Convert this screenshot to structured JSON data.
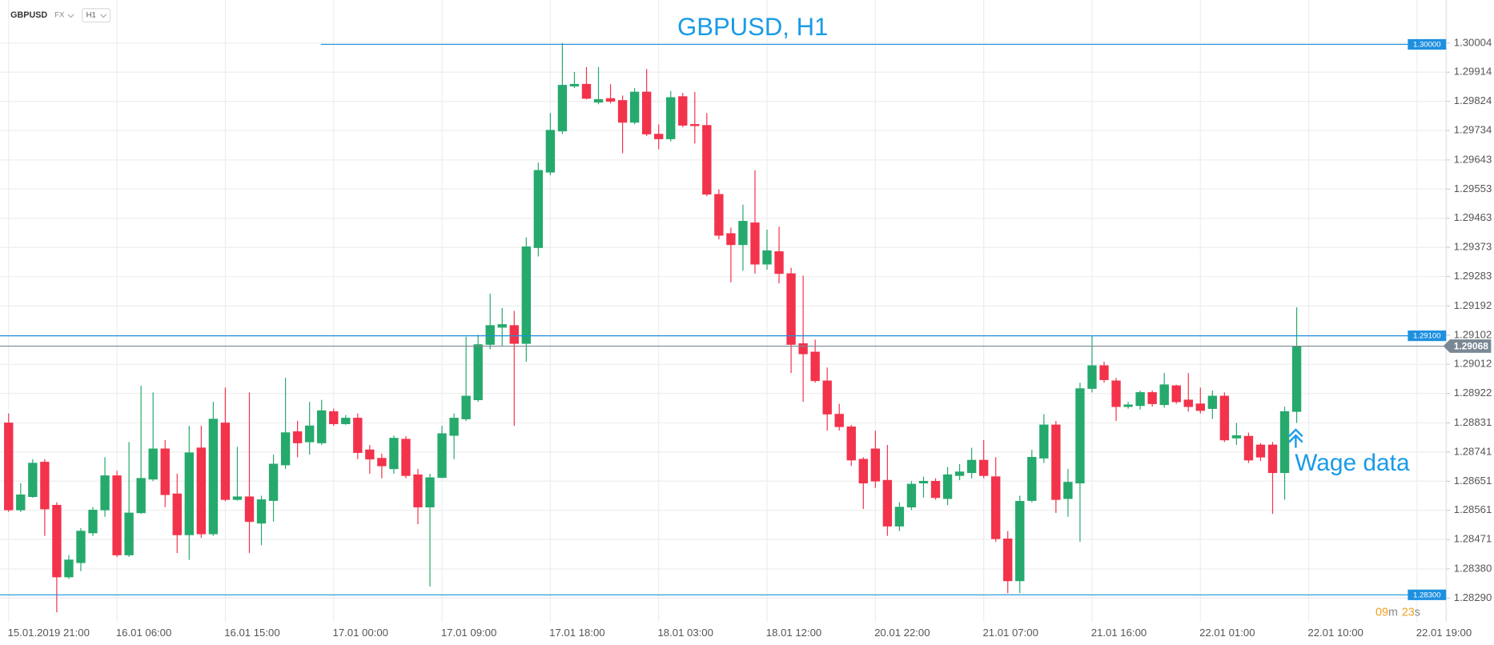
{
  "toolbar": {
    "symbol": "GBPUSD",
    "market": "FX",
    "timeframe": "H1"
  },
  "chart_data": {
    "type": "candlestick",
    "title": "GBPUSD, H1",
    "categories": [
      "15.01.2019 21:00",
      null,
      null,
      null,
      null,
      null,
      null,
      null,
      null,
      "16.01 06:00",
      null,
      null,
      null,
      null,
      null,
      null,
      null,
      null,
      "16.01 15:00",
      null,
      null,
      null,
      null,
      null,
      null,
      null,
      null,
      "17.01 00:00",
      null,
      null,
      null,
      null,
      null,
      null,
      null,
      null,
      "17.01 09:00",
      null,
      null,
      null,
      null,
      null,
      null,
      null,
      null,
      "17.01 18:00",
      null,
      null,
      null,
      null,
      null,
      null,
      null,
      null,
      "18.01 03:00",
      null,
      null,
      null,
      null,
      null,
      null,
      null,
      null,
      "18.01 12:00",
      null,
      null,
      null,
      null,
      null,
      null,
      null,
      null,
      "20.01 22:00",
      null,
      null,
      null,
      null,
      null,
      null,
      null,
      null,
      "21.01 07:00",
      null,
      null,
      null,
      null,
      null,
      null,
      null,
      null,
      "21.01 16:00",
      null,
      null,
      null,
      null,
      null,
      null,
      null,
      null,
      "22.01 01:00",
      null,
      null,
      null,
      null,
      null,
      null,
      null,
      null,
      "22.01 10:00",
      null,
      null,
      null,
      null,
      null,
      null,
      null,
      null,
      "22.01 19:00"
    ],
    "open": [
      1.28831,
      1.28562,
      1.28603,
      1.2871,
      1.28577,
      1.28355,
      1.28399,
      1.28491,
      1.28562,
      1.28668,
      1.28423,
      1.28553,
      1.28657,
      1.28751,
      1.28612,
      1.28485,
      1.28754,
      1.28488,
      1.28831,
      1.28594,
      1.28603,
      1.28521,
      1.28591,
      1.28701,
      1.28804,
      1.28772,
      1.28769,
      1.28866,
      1.28828,
      1.28846,
      1.28748,
      1.28722,
      1.28689,
      1.28781,
      1.28671,
      1.28571,
      1.28662,
      1.28792,
      1.28843,
      1.28902,
      1.29073,
      1.29126,
      1.29132,
      1.29076,
      1.29372,
      1.29605,
      1.29732,
      1.29871,
      1.29877,
      1.29821,
      1.29833,
      1.29827,
      1.29759,
      1.29853,
      1.29723,
      1.29708,
      1.29839,
      1.29753,
      1.2975,
      1.29537,
      1.29416,
      1.29381,
      1.29449,
      1.29321,
      1.2936,
      1.29292,
      1.29076,
      1.2905,
      1.28961,
      1.28858,
      1.28819,
      1.28719,
      1.28751,
      1.28654,
      1.28512,
      1.28571,
      1.28645,
      1.28651,
      1.28597,
      1.28668,
      1.28677,
      1.28716,
      1.28665,
      1.28473,
      1.28343,
      1.28591,
      1.28722,
      1.28825,
      1.28597,
      1.28645,
      1.28937,
      1.29008,
      1.28961,
      1.28881,
      1.28884,
      1.28925,
      1.28887,
      1.28946,
      1.28902,
      1.2889,
      1.28875,
      1.28914,
      1.28784,
      1.2879,
      1.28763,
      1.28763,
      1.28677,
      1.28866,
      null,
      null,
      null,
      null,
      null,
      null,
      null,
      null,
      null,
      null
    ],
    "high": [
      1.2886,
      1.28645,
      1.28719,
      1.28719,
      1.28586,
      1.28423,
      1.28506,
      1.28571,
      1.28725,
      1.28683,
      1.28772,
      1.28946,
      1.28925,
      1.28778,
      1.28674,
      1.28822,
      1.28822,
      1.28896,
      1.2894,
      1.28757,
      1.28925,
      1.28606,
      1.28733,
      1.2897,
      1.28837,
      1.28896,
      1.28902,
      1.28875,
      1.28855,
      1.2886,
      1.28763,
      1.28736,
      1.28792,
      1.2879,
      1.28689,
      1.28674,
      1.28822,
      1.2886,
      1.29097,
      1.29103,
      1.2923,
      1.29186,
      1.29177,
      1.29404,
      1.29635,
      1.29788,
      1.30004,
      1.29915,
      1.2993,
      1.2993,
      1.29877,
      1.29842,
      1.29865,
      1.29924,
      1.29753,
      1.29856,
      1.2985,
      1.29853,
      1.29788,
      1.29552,
      1.29434,
      1.29505,
      1.29611,
      1.29428,
      1.29437,
      1.2931,
      1.29286,
      1.29088,
      1.29002,
      1.2889,
      1.28825,
      1.28725,
      1.28807,
      1.28763,
      1.28586,
      1.28651,
      1.28665,
      1.2866,
      1.28695,
      1.28704,
      1.28754,
      1.28778,
      1.28725,
      1.28497,
      1.28606,
      1.28748,
      1.28858,
      1.28837,
      1.28689,
      1.28955,
      1.291,
      1.2902,
      1.2897,
      1.28896,
      1.28931,
      1.28931,
      1.28985,
      1.28949,
      1.28985,
      1.2894,
      1.28931,
      1.28925,
      1.28831,
      1.28801,
      1.28769,
      1.28772,
      1.28881,
      1.29188,
      null,
      null,
      null,
      null,
      null,
      null,
      null,
      null,
      null,
      null
    ],
    "low": [
      1.28556,
      1.28556,
      1.286,
      1.28482,
      1.28246,
      1.28349,
      1.28373,
      1.28482,
      1.28541,
      1.28417,
      1.28417,
      1.2855,
      1.28651,
      1.28571,
      1.28429,
      1.28408,
      1.28476,
      1.28482,
      1.28589,
      1.28591,
      1.28429,
      1.28453,
      1.28526,
      1.28689,
      1.28725,
      1.28733,
      1.28763,
      1.28822,
      1.28825,
      1.28719,
      1.28674,
      1.2866,
      1.28674,
      1.2866,
      1.28518,
      1.28326,
      1.2866,
      1.28719,
      1.28837,
      1.28896,
      1.29058,
      1.29067,
      1.28822,
      1.2902,
      1.29345,
      1.29596,
      1.29723,
      1.29865,
      1.2983,
      1.29815,
      1.29818,
      1.29664,
      1.29753,
      1.29717,
      1.29676,
      1.297,
      1.29744,
      1.29694,
      1.29531,
      1.29398,
      1.29265,
      1.29301,
      1.29292,
      1.29304,
      1.29262,
      1.28985,
      1.28896,
      1.28955,
      1.28807,
      1.28807,
      1.28698,
      1.28565,
      1.2863,
      1.28482,
      1.28497,
      1.28562,
      1.286,
      1.28594,
      1.28577,
      1.28654,
      1.2866,
      1.2866,
      1.28464,
      1.28305,
      1.28305,
      1.28586,
      1.28707,
      1.28553,
      1.28541,
      1.28464,
      1.28925,
      1.28955,
      1.28837,
      1.28875,
      1.28872,
      1.28881,
      1.28878,
      1.2889,
      1.28866,
      1.2886,
      1.28843,
      1.28772,
      1.28763,
      1.28707,
      1.28713,
      1.2855,
      1.28594,
      1.28831,
      null,
      null,
      null,
      null,
      null,
      null,
      null,
      null,
      null,
      null
    ],
    "close": [
      1.28562,
      1.28609,
      1.28707,
      1.28565,
      1.28355,
      1.28408,
      1.28497,
      1.28562,
      1.28668,
      1.28423,
      1.28553,
      1.2866,
      1.28751,
      1.28609,
      1.28485,
      1.28739,
      1.28488,
      1.28843,
      1.28594,
      1.28603,
      1.28526,
      1.28594,
      1.28704,
      1.28801,
      1.28769,
      1.28822,
      1.28869,
      1.28828,
      1.28846,
      1.28739,
      1.28719,
      1.28698,
      1.28784,
      1.28668,
      1.28571,
      1.28662,
      1.28798,
      1.28846,
      1.28914,
      1.29073,
      1.29132,
      1.29135,
      1.29076,
      1.29375,
      1.29611,
      1.29735,
      1.29874,
      1.29877,
      1.29833,
      1.2983,
      1.29824,
      1.29759,
      1.29853,
      1.29723,
      1.29708,
      1.29836,
      1.2975,
      1.2975,
      1.29537,
      1.2941,
      1.29381,
      1.29454,
      1.29321,
      1.29363,
      1.29292,
      1.29073,
      1.29044,
      1.28961,
      1.28858,
      1.28819,
      1.28716,
      1.28645,
      1.28651,
      1.28512,
      1.28571,
      1.28642,
      1.28651,
      1.286,
      1.28671,
      1.2868,
      1.28716,
      1.28668,
      1.28473,
      1.28343,
      1.28589,
      1.28725,
      1.28825,
      1.28594,
      1.28648,
      1.28937,
      1.29008,
      1.28964,
      1.28881,
      1.28887,
      1.28925,
      1.2889,
      1.28949,
      1.28896,
      1.28881,
      1.28869,
      1.28914,
      1.28778,
      1.28792,
      1.28716,
      1.28725,
      1.28677,
      1.28866,
      1.29068,
      null,
      null,
      null,
      null,
      null,
      null,
      null,
      null,
      null,
      null
    ],
    "up_color": "#26a96c",
    "down_color": "#f2334b",
    "level_color": "#1e90e0",
    "ylim": [
      1.28216,
      1.30137
    ],
    "yticks": [
      1.30004,
      1.29914,
      1.29824,
      1.29734,
      1.29643,
      1.29553,
      1.29463,
      1.29373,
      1.29283,
      1.29192,
      1.29102,
      1.29012,
      1.28922,
      1.28831,
      1.28741,
      1.28651,
      1.28561,
      1.28471,
      {
        "value": 1.2838,
        "label": "1.28380"
      },
      {
        "value": 1.2829,
        "label": "1.28290"
      }
    ],
    "grid": true,
    "levels": [
      {
        "value": 1.3,
        "label": "1.30000"
      },
      {
        "value": 1.291,
        "label": "1.29100"
      },
      {
        "value": 1.283,
        "label": "1.28300"
      }
    ],
    "current_price": {
      "value": 1.29068,
      "label": "1.29068"
    },
    "annotation": "Wage data",
    "countdown": [
      "09",
      "m",
      "23",
      "s"
    ]
  }
}
